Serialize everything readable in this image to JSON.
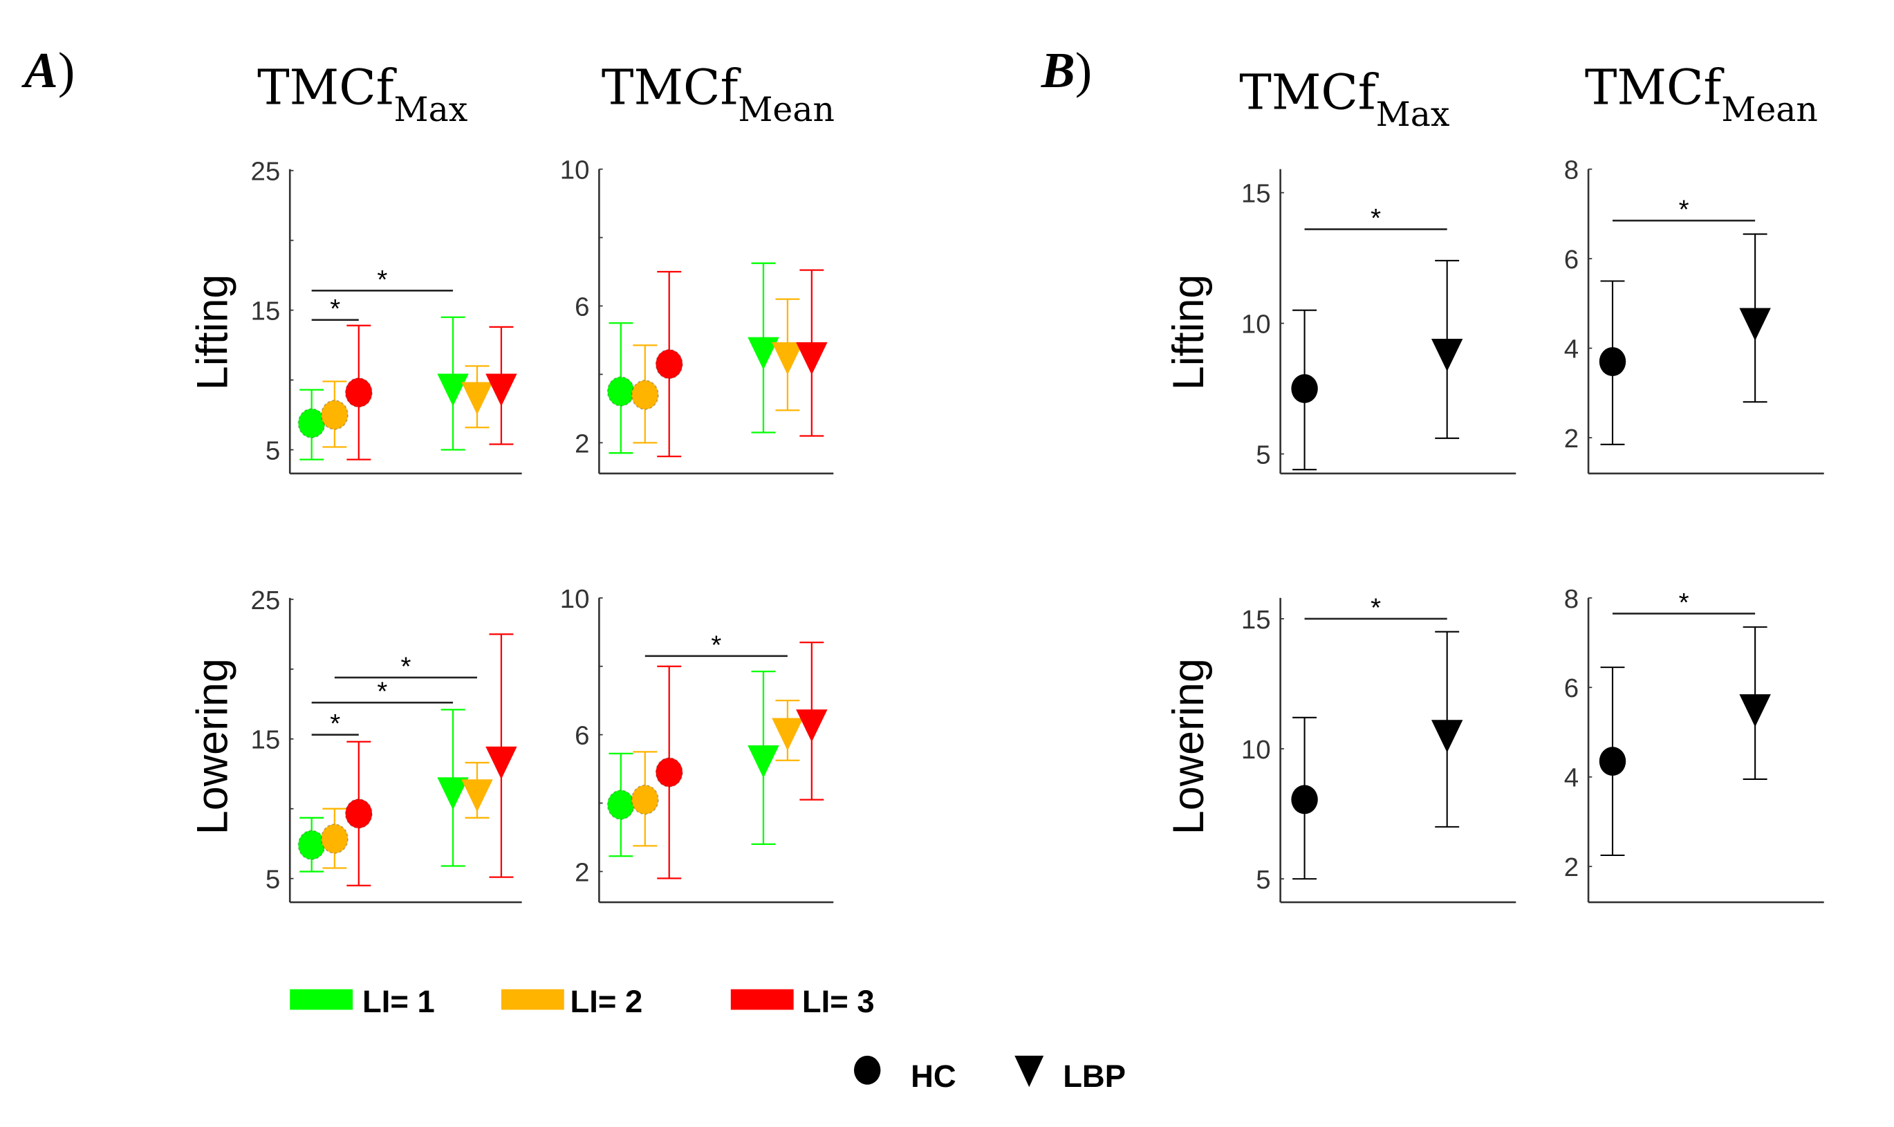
{
  "panel_labels": {
    "a": "A",
    "b": "B",
    "paren": ")"
  },
  "titles": {
    "tmcf": "TMCf",
    "max": "Max",
    "mean": "Mean"
  },
  "rows": {
    "lifting": "Lifting",
    "lowering": "Lowering"
  },
  "legend": {
    "levels": [
      {
        "label": "LI= 1",
        "color": "#00ff00"
      },
      {
        "label": "LI= 2",
        "color": "#ffb400"
      },
      {
        "label": "LI= 3",
        "color": "#ff0000"
      }
    ],
    "groups": [
      {
        "label": "HC",
        "marker": "circle"
      },
      {
        "label": "LBP",
        "marker": "triangle-down"
      }
    ]
  },
  "chart_data": [
    {
      "type": "scatter",
      "panel": "A",
      "row": "Lifting",
      "metric": "TMCfMax",
      "ylim": [
        3.3,
        25.1
      ],
      "yticks": [
        5,
        15,
        25
      ],
      "minor_ticks": [
        10,
        20
      ],
      "points": [
        {
          "group": "HC",
          "level": 1,
          "mean": 6.9,
          "lo": 4.3,
          "hi": 9.3
        },
        {
          "group": "HC",
          "level": 2,
          "mean": 7.5,
          "lo": 5.2,
          "hi": 9.9
        },
        {
          "group": "HC",
          "level": 3,
          "mean": 9.1,
          "lo": 4.3,
          "hi": 13.9
        },
        {
          "group": "LBP",
          "level": 1,
          "mean": 9.5,
          "lo": 5.0,
          "hi": 14.5
        },
        {
          "group": "LBP",
          "level": 2,
          "mean": 8.9,
          "lo": 6.6,
          "hi": 11.0
        },
        {
          "group": "LBP",
          "level": 3,
          "mean": 9.5,
          "lo": 5.4,
          "hi": 13.8
        }
      ],
      "significance": [
        {
          "from": "HC-1",
          "to": "HC-3",
          "y": 14.3,
          "label": "*"
        },
        {
          "from": "HC-1",
          "to": "LBP-1",
          "y": 16.4,
          "label": "*"
        }
      ]
    },
    {
      "type": "scatter",
      "panel": "A",
      "row": "Lifting",
      "metric": "TMCfMean",
      "ylim": [
        1.1,
        10
      ],
      "yticks": [
        2,
        6,
        10
      ],
      "minor_ticks": [
        4,
        8
      ],
      "points": [
        {
          "group": "HC",
          "level": 1,
          "mean": 3.5,
          "lo": 1.7,
          "hi": 5.5
        },
        {
          "group": "HC",
          "level": 2,
          "mean": 3.4,
          "lo": 2.0,
          "hi": 4.85
        },
        {
          "group": "HC",
          "level": 3,
          "mean": 4.3,
          "lo": 1.6,
          "hi": 7.0
        },
        {
          "group": "LBP",
          "level": 1,
          "mean": 4.7,
          "lo": 2.3,
          "hi": 7.25
        },
        {
          "group": "LBP",
          "level": 2,
          "mean": 4.55,
          "lo": 2.95,
          "hi": 6.2
        },
        {
          "group": "LBP",
          "level": 3,
          "mean": 4.55,
          "lo": 2.2,
          "hi": 7.05
        }
      ],
      "significance": []
    },
    {
      "type": "scatter",
      "panel": "A",
      "row": "Lowering",
      "metric": "TMCfMax",
      "ylim": [
        3.3,
        25.1
      ],
      "yticks": [
        5,
        15,
        25
      ],
      "minor_ticks": [
        10,
        20
      ],
      "points": [
        {
          "group": "HC",
          "level": 1,
          "mean": 7.4,
          "lo": 5.5,
          "hi": 9.35
        },
        {
          "group": "HC",
          "level": 2,
          "mean": 7.85,
          "lo": 5.75,
          "hi": 10.0
        },
        {
          "group": "HC",
          "level": 3,
          "mean": 9.65,
          "lo": 4.5,
          "hi": 14.8
        },
        {
          "group": "LBP",
          "level": 1,
          "mean": 11.3,
          "lo": 5.9,
          "hi": 17.1
        },
        {
          "group": "LBP",
          "level": 2,
          "mean": 11.15,
          "lo": 9.35,
          "hi": 13.3
        },
        {
          "group": "LBP",
          "level": 3,
          "mean": 13.5,
          "lo": 5.1,
          "hi": 22.5
        }
      ],
      "significance": [
        {
          "from": "HC-1",
          "to": "HC-3",
          "y": 15.3,
          "label": "*"
        },
        {
          "from": "HC-1",
          "to": "LBP-1",
          "y": 17.6,
          "label": "*"
        },
        {
          "from": "HC-2",
          "to": "LBP-2",
          "y": 19.4,
          "label": "*"
        }
      ]
    },
    {
      "type": "scatter",
      "panel": "A",
      "row": "Lowering",
      "metric": "TMCfMean",
      "ylim": [
        1.1,
        10
      ],
      "yticks": [
        2,
        6,
        10
      ],
      "minor_ticks": [
        4,
        8
      ],
      "points": [
        {
          "group": "HC",
          "level": 1,
          "mean": 3.95,
          "lo": 2.45,
          "hi": 5.45
        },
        {
          "group": "HC",
          "level": 2,
          "mean": 4.1,
          "lo": 2.75,
          "hi": 5.5
        },
        {
          "group": "HC",
          "level": 3,
          "mean": 4.9,
          "lo": 1.8,
          "hi": 8.0
        },
        {
          "group": "LBP",
          "level": 1,
          "mean": 5.3,
          "lo": 2.8,
          "hi": 7.85
        },
        {
          "group": "LBP",
          "level": 2,
          "mean": 6.1,
          "lo": 5.25,
          "hi": 7.0
        },
        {
          "group": "LBP",
          "level": 3,
          "mean": 6.35,
          "lo": 4.1,
          "hi": 8.7
        }
      ],
      "significance": [
        {
          "from": "HC-2",
          "to": "LBP-2",
          "y": 8.3,
          "label": "*"
        }
      ]
    },
    {
      "type": "scatter",
      "panel": "B",
      "row": "Lifting",
      "metric": "TMCfMax",
      "ylim": [
        4.25,
        15.9
      ],
      "yticks": [
        5,
        10,
        15
      ],
      "minor_ticks": [],
      "points": [
        {
          "group": "HC",
          "mean": 7.5,
          "lo": 4.4,
          "hi": 10.5
        },
        {
          "group": "LBP",
          "mean": 8.9,
          "lo": 5.6,
          "hi": 12.4
        }
      ],
      "significance": [
        {
          "from": "HC",
          "to": "LBP",
          "y": 13.6,
          "label": "*"
        }
      ]
    },
    {
      "type": "scatter",
      "panel": "B",
      "row": "Lifting",
      "metric": "TMCfMean",
      "ylim": [
        1.2,
        8
      ],
      "yticks": [
        2,
        4,
        6,
        8
      ],
      "minor_ticks": [],
      "points": [
        {
          "group": "HC",
          "mean": 3.7,
          "lo": 1.85,
          "hi": 5.5
        },
        {
          "group": "LBP",
          "mean": 4.6,
          "lo": 2.8,
          "hi": 6.55
        }
      ],
      "significance": [
        {
          "from": "HC",
          "to": "LBP",
          "y": 6.85,
          "label": "*"
        }
      ]
    },
    {
      "type": "scatter",
      "panel": "B",
      "row": "Lowering",
      "metric": "TMCfMax",
      "ylim": [
        4.1,
        15.8
      ],
      "yticks": [
        5,
        10,
        15
      ],
      "minor_ticks": [],
      "points": [
        {
          "group": "HC",
          "mean": 8.05,
          "lo": 5.0,
          "hi": 11.2
        },
        {
          "group": "LBP",
          "mean": 10.6,
          "lo": 7.0,
          "hi": 14.5
        }
      ],
      "significance": [
        {
          "from": "HC",
          "to": "LBP",
          "y": 15.0,
          "label": "*"
        }
      ]
    },
    {
      "type": "scatter",
      "panel": "B",
      "row": "Lowering",
      "metric": "TMCfMean",
      "ylim": [
        1.2,
        8
      ],
      "yticks": [
        2,
        4,
        6,
        8
      ],
      "minor_ticks": [],
      "points": [
        {
          "group": "HC",
          "mean": 4.35,
          "lo": 2.25,
          "hi": 6.45
        },
        {
          "group": "LBP",
          "mean": 5.55,
          "lo": 3.95,
          "hi": 7.35
        }
      ],
      "significance": [
        {
          "from": "HC",
          "to": "LBP",
          "y": 7.65,
          "label": "*"
        }
      ]
    }
  ]
}
